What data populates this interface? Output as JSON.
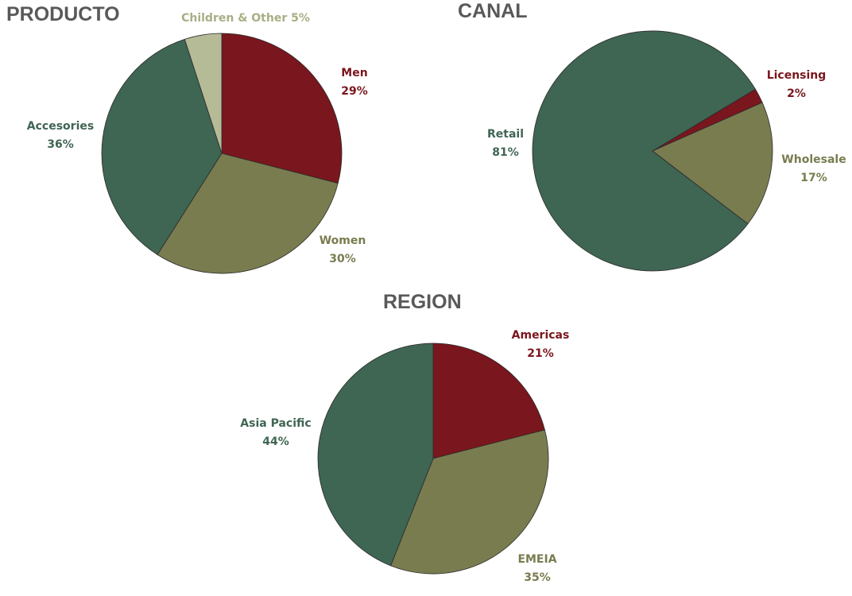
{
  "chart_data": [
    {
      "type": "pie",
      "title": "PRODUCTO",
      "start_angle_deg": 0,
      "slices": [
        {
          "label": "Men",
          "value": 29,
          "pct": "29%",
          "color": "#7a161d"
        },
        {
          "label": "Women",
          "value": 30,
          "pct": "30%",
          "color": "#797c4f"
        },
        {
          "label": "Accesories",
          "value": 36,
          "pct": "36%",
          "color": "#3f6553"
        },
        {
          "label": "Children & Other",
          "value": 5,
          "pct": "5%",
          "color": "#b6bb97",
          "text_color": "#a9ae85"
        }
      ]
    },
    {
      "type": "pie",
      "title": "CANAL",
      "start_angle_deg": 59,
      "slices": [
        {
          "label": "Licensing",
          "value": 2,
          "pct": "2%",
          "color": "#7a161d"
        },
        {
          "label": "Wholesale",
          "value": 17,
          "pct": "17%",
          "color": "#797c4f"
        },
        {
          "label": "Retail",
          "value": 81,
          "pct": "81%",
          "color": "#3f6553"
        }
      ]
    },
    {
      "type": "pie",
      "title": "REGION",
      "start_angle_deg": 0,
      "slices": [
        {
          "label": "Americas",
          "value": 21,
          "pct": "21%",
          "color": "#7a161d"
        },
        {
          "label": "EMEIA",
          "value": 35,
          "pct": "35%",
          "color": "#797c4f"
        },
        {
          "label": "Asia Pacific",
          "value": 44,
          "pct": "44%",
          "color": "#3f6553"
        }
      ]
    }
  ]
}
